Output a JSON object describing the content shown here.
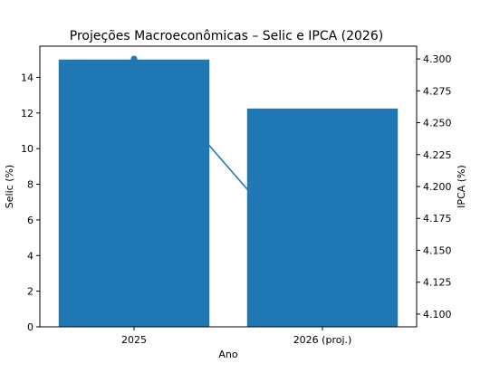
{
  "chart_data": {
    "type": "bar",
    "title": "Projeções Macroeconômicas – Selic e IPCA (2026)",
    "xlabel": "Ano",
    "ylabel_left": "Selic (%)",
    "ylabel_right": "IPCA (%)",
    "categories": [
      "2025",
      "2026 (proj.)"
    ],
    "series": [
      {
        "kind": "bar",
        "axis": "left",
        "values": [
          15.0,
          12.25
        ],
        "color": "#1f77b4"
      },
      {
        "kind": "line",
        "axis": "right",
        "values": [
          4.3,
          4.13
        ],
        "color": "#1f77b4",
        "marker": "circle"
      }
    ],
    "ylim_left": [
      0,
      15.75
    ],
    "ylim_right": [
      4.09,
      4.31
    ],
    "yticks_left": [
      "0",
      "2",
      "4",
      "6",
      "8",
      "10",
      "12",
      "14"
    ],
    "yticks_right": [
      "4.100",
      "4.125",
      "4.150",
      "4.175",
      "4.200",
      "4.225",
      "4.250",
      "4.275",
      "4.300"
    ],
    "grid": false,
    "legend": "none"
  }
}
